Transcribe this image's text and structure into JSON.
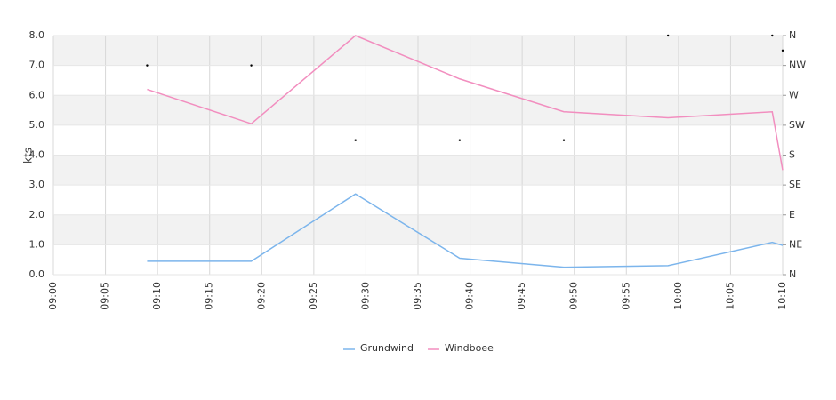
{
  "chart_data": {
    "type": "line",
    "ylabel": "kts",
    "x": [
      "09:09",
      "09:19",
      "09:29",
      "09:39",
      "09:49",
      "09:59",
      "10:09",
      "10:10"
    ],
    "series": [
      {
        "name": "Grundwind",
        "color": "#7cb5ec",
        "values": [
          0.45,
          0.45,
          2.7,
          0.55,
          0.25,
          0.3,
          1.08,
          0.98
        ]
      },
      {
        "name": "Windboee",
        "color": "#f28ebf",
        "values": [
          6.2,
          5.05,
          8.0,
          6.55,
          5.45,
          5.25,
          5.45,
          3.5
        ]
      },
      {
        "color": "#000000",
        "axis": "y2",
        "values": [
          7.0,
          7.0,
          4.5,
          4.5,
          4.5,
          8.0,
          8.0,
          7.5
        ]
      }
    ],
    "xlim": [
      "09:00",
      "10:10"
    ],
    "xticks": [
      "09:00",
      "09:05",
      "09:10",
      "09:15",
      "09:20",
      "09:25",
      "09:30",
      "09:35",
      "09:40",
      "09:45",
      "09:50",
      "09:55",
      "10:00",
      "10:05",
      "10:10"
    ],
    "ylim": [
      0,
      8
    ],
    "yticks": [
      {
        "value": 0,
        "label": "0.0"
      },
      {
        "value": 1,
        "label": "1.0"
      },
      {
        "value": 2,
        "label": "2.0"
      },
      {
        "value": 3,
        "label": "3.0"
      },
      {
        "value": 4,
        "label": "4.0"
      },
      {
        "value": 5,
        "label": "5.0"
      },
      {
        "value": 6,
        "label": "6.0"
      },
      {
        "value": 7,
        "label": "7.0"
      },
      {
        "value": 8,
        "label": "8.0"
      }
    ],
    "y2lim": [
      0,
      8
    ],
    "y2ticks": [
      {
        "value": 0,
        "label": "N"
      },
      {
        "value": 1,
        "label": "NE"
      },
      {
        "value": 2,
        "label": "E"
      },
      {
        "value": 3,
        "label": "SE"
      },
      {
        "value": 4,
        "label": "S"
      },
      {
        "value": 5,
        "label": "SW"
      },
      {
        "value": 6,
        "label": "W"
      },
      {
        "value": 7,
        "label": "NW"
      },
      {
        "value": 8,
        "label": "N"
      }
    ],
    "grid": true,
    "legend": "bottom"
  }
}
